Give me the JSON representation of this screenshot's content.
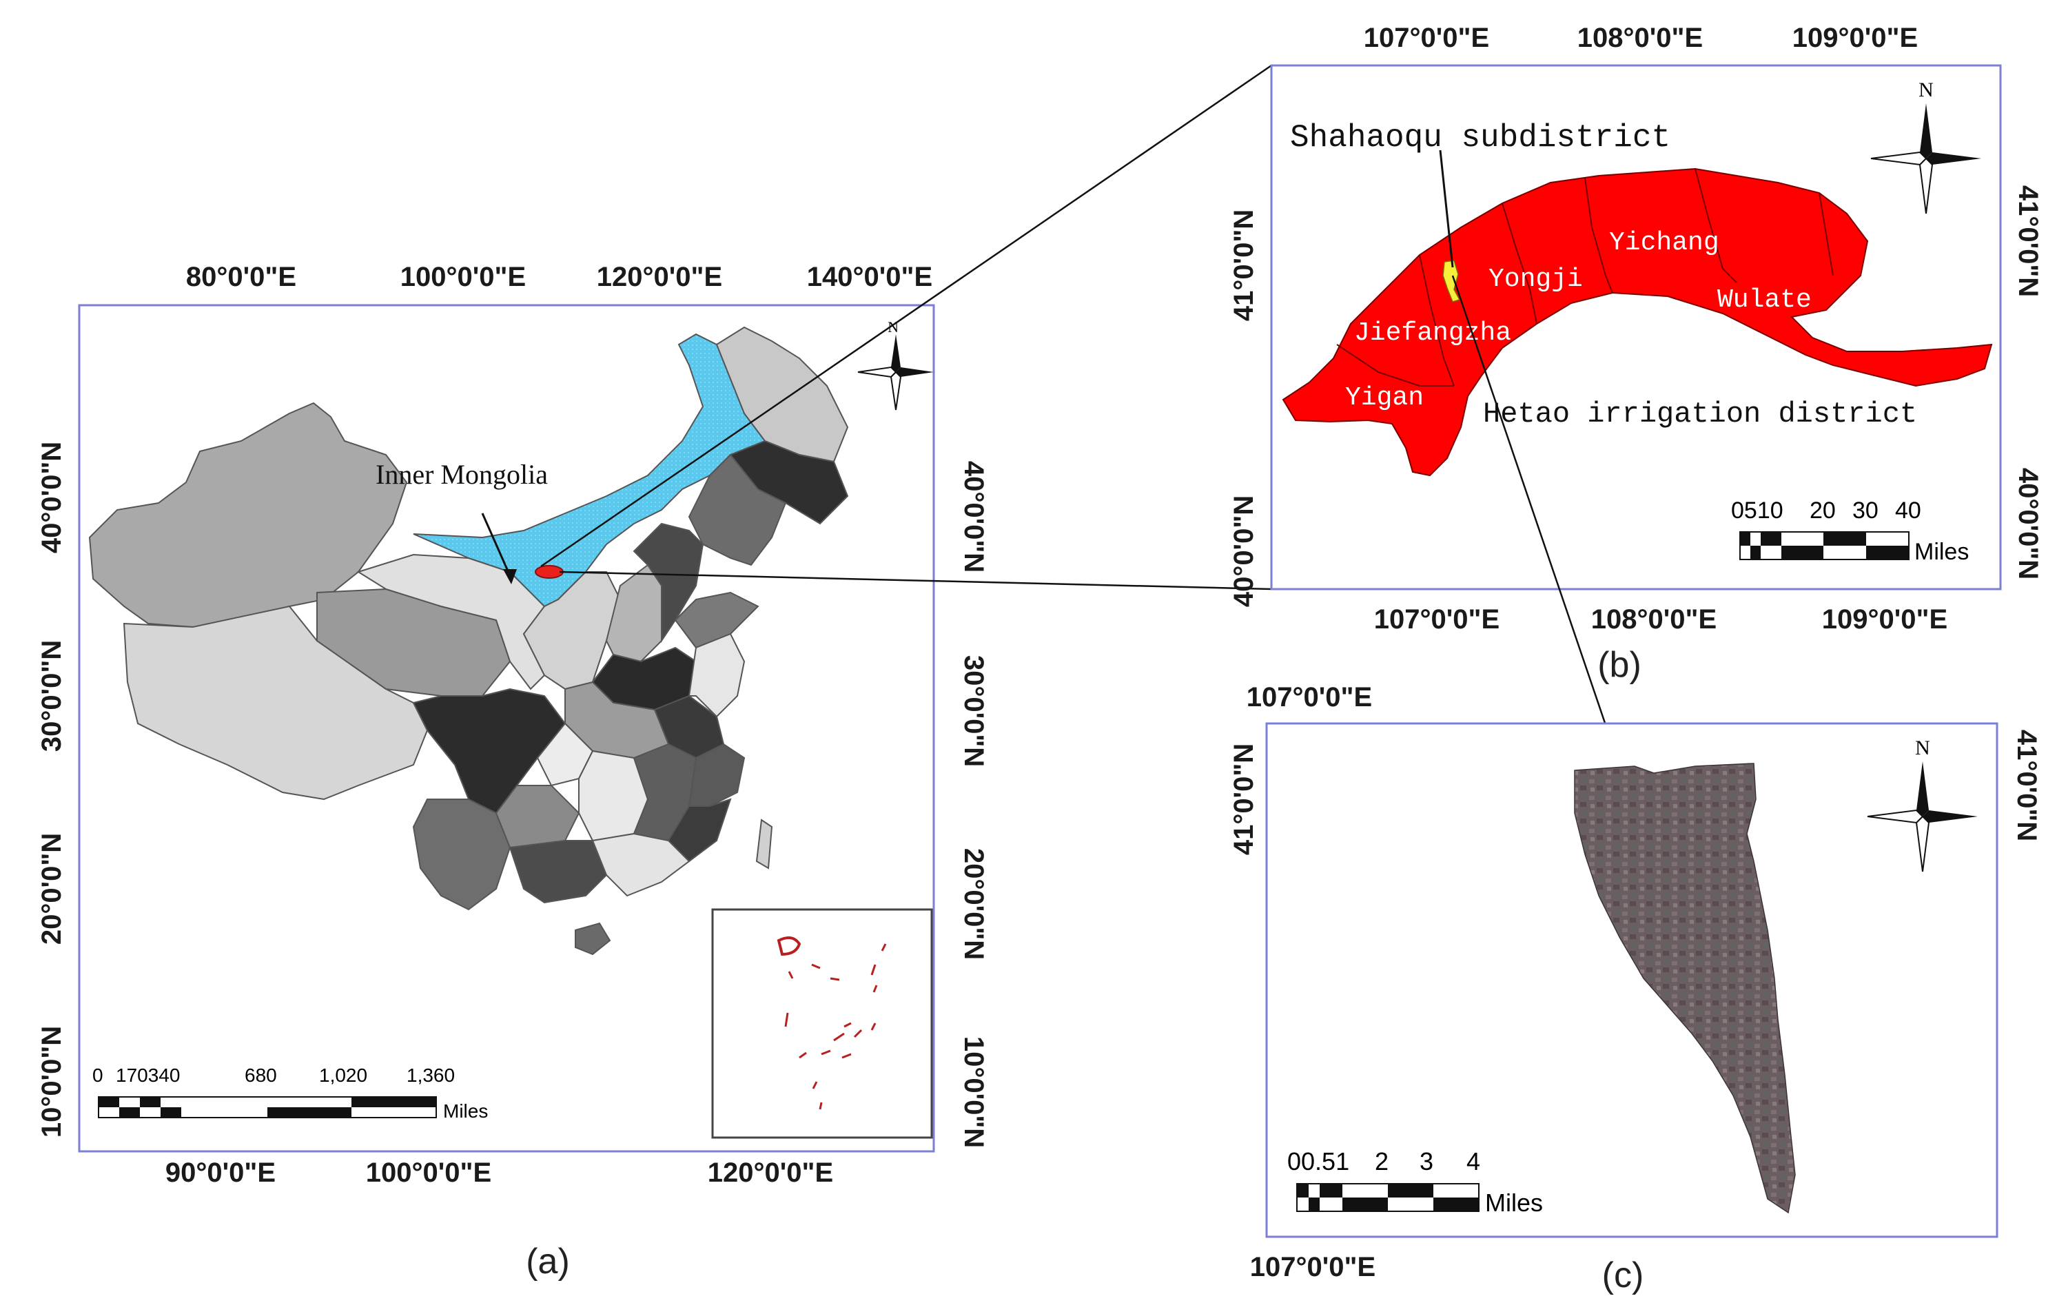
{
  "panels": {
    "a": {
      "label": "(a)",
      "top_lon_labels": [
        "80°0'0\"E",
        "100°0'0\"E",
        "120°0'0\"E",
        "140°0'0\"E"
      ],
      "bottom_lon_labels": [
        "90°0'0\"E",
        "100°0'0\"E",
        "120°0'0\"E"
      ],
      "left_lat_labels": [
        "40°0'0\"N",
        "30°0'0\"N",
        "20°0'0\"N",
        "10°0'0\"N"
      ],
      "right_lat_labels": [
        "40°0'0\"N",
        "30°0'0\"N",
        "20°0'0\"N",
        "10°0'0\"N"
      ],
      "region_label": "Inner Mongolia",
      "north": "N",
      "scale": {
        "ticks": [
          "0",
          "170340",
          "680",
          "1,020",
          "1,360"
        ],
        "unit": "Miles"
      },
      "colors": {
        "inner_mongolia": "#5bc8ee",
        "study_area": "#e8221a",
        "frame": "#7b7fd6"
      }
    },
    "b": {
      "label": "(b)",
      "top_lon_labels": [
        "107°0'0\"E",
        "108°0'0\"E",
        "109°0'0\"E"
      ],
      "bottom_lon_labels": [
        "107°0'0\"E",
        "108°0'0\"E",
        "109°0'0\"E"
      ],
      "left_lat_labels": [
        "41°0'0\"N",
        "40°0'0\"N"
      ],
      "right_lat_labels": [
        "41°0'0\"N",
        "40°0'0\"N"
      ],
      "north": "N",
      "districts": {
        "title": "Shahaoqu subdistrict",
        "yichang": "Yichang",
        "yongji": "Yongji",
        "wulate": "Wulate",
        "jiefangzha": "Jiefangzha",
        "yigan": "Yigan",
        "hetao": "Hetao irrigation district"
      },
      "scale": {
        "ticks": [
          "0510",
          "20",
          "30",
          "40"
        ],
        "unit": "Miles"
      },
      "colors": {
        "district_fill": "#ff0000",
        "subdistrict_fill": "#f5ee3a"
      }
    },
    "c": {
      "label": "(c)",
      "top_lon_labels": [
        "107°0'0\"E"
      ],
      "bottom_lon_labels": [
        "107°0'0\"E"
      ],
      "left_lat_labels": [
        "41°0'0\"N"
      ],
      "right_lat_labels": [
        "41°0'0\"N"
      ],
      "north": "N",
      "scale": {
        "ticks": [
          "00.51",
          "2",
          "3",
          "4"
        ],
        "unit": "Miles"
      },
      "colors": {
        "imagery": "#6b5e62"
      }
    }
  }
}
